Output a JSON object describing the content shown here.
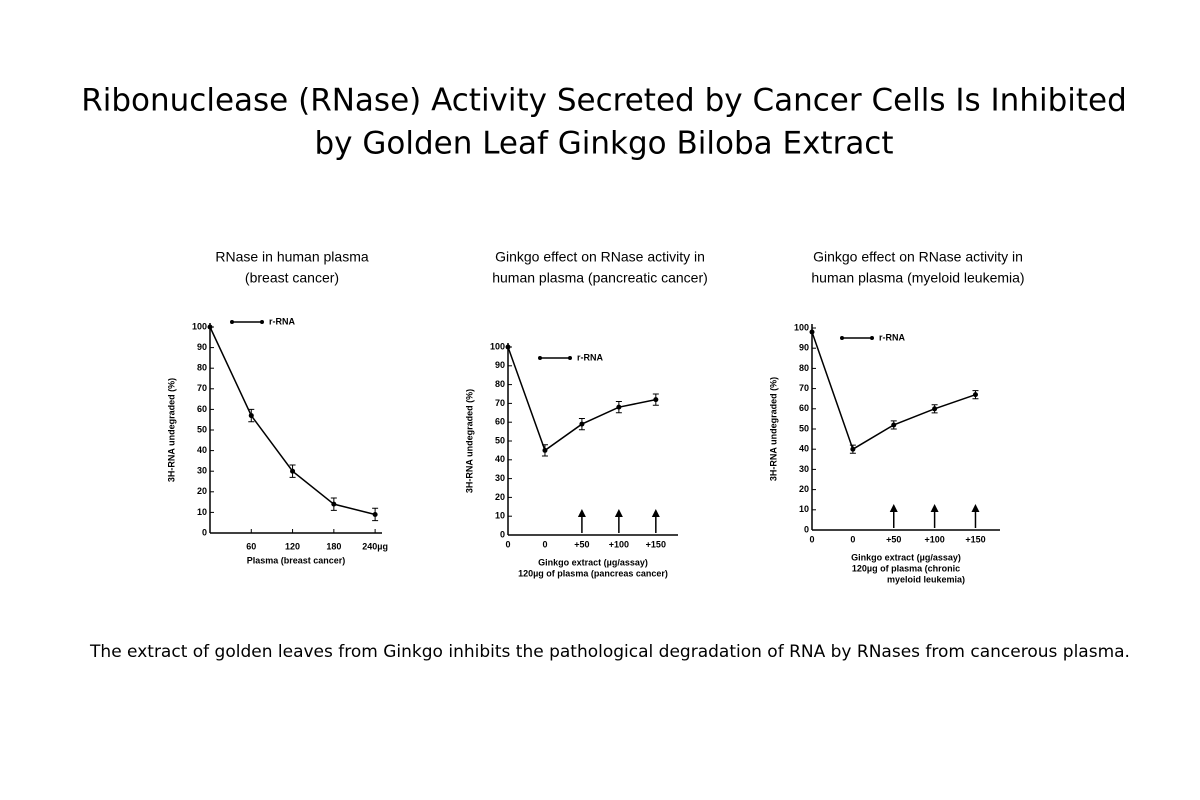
{
  "title": [
    "Ribonuclease (RNase) Activity Secreted by Cancer Cells Is Inhibited",
    "by Golden Leaf Ginkgo Biloba Extract"
  ],
  "caption": "The extract of golden leaves from Ginkgo inhibits the pathological degradation of RNA by RNases from cancerous plasma.",
  "chart_data": [
    {
      "type": "line",
      "title": [
        "RNase in human plasma",
        "(breast cancer)"
      ],
      "x": [
        0,
        60,
        120,
        180,
        240
      ],
      "xlim": [
        0,
        250
      ],
      "xticks": [
        60,
        120,
        180,
        {
          "value": 240,
          "label": "240µg"
        }
      ],
      "ylim": [
        0,
        100
      ],
      "yticks": [
        0,
        10,
        20,
        30,
        40,
        50,
        60,
        70,
        80,
        90,
        100
      ],
      "y_label": "3H-RNA undegraded (%)",
      "x_label": [
        "Plasma (breast cancer)"
      ],
      "series": [
        {
          "name": "r-RNA",
          "color": "#000000",
          "values": [
            100,
            57,
            30,
            14,
            9
          ],
          "errors": [
            null,
            3,
            3,
            3,
            3
          ]
        }
      ]
    },
    {
      "type": "line",
      "title": [
        "Ginkgo effect on RNase activity in",
        "human plasma (pancreatic cancer)"
      ],
      "categories": [
        "0",
        "0",
        "+50",
        "+100",
        "+150"
      ],
      "ylim": [
        0,
        100
      ],
      "yticks": [
        0,
        10,
        20,
        30,
        40,
        50,
        60,
        70,
        80,
        90,
        100
      ],
      "y_label": "3H-RNA undegraded (%)",
      "x_label": [
        "Ginkgo extract (µg/assay)",
        "120µg of plasma (pancreas cancer)"
      ],
      "series": [
        {
          "name": "r-RNA",
          "color": "#000000",
          "values": [
            100,
            45,
            59,
            68,
            72
          ],
          "errors": [
            null,
            3,
            3,
            3,
            3
          ]
        }
      ]
    },
    {
      "type": "line",
      "title": [
        "Ginkgo effect on RNase activity in",
        "human plasma (myeloid leukemia)"
      ],
      "categories": [
        "0",
        "0",
        "+50",
        "+100",
        "+150"
      ],
      "ylim": [
        0,
        100
      ],
      "yticks": [
        0,
        10,
        20,
        30,
        40,
        50,
        60,
        70,
        80,
        90,
        100
      ],
      "y_label": "3H-RNA undegraded (%)",
      "x_label": [
        "Ginkgo extract (µg/assay)",
        "120µg of plasma (chronic",
        "myeloid leukemia)"
      ],
      "series": [
        {
          "name": "r-RNA",
          "color": "#000000",
          "values": [
            98,
            40,
            52,
            60,
            67
          ],
          "errors": [
            null,
            2,
            2,
            2,
            2
          ]
        }
      ]
    }
  ]
}
